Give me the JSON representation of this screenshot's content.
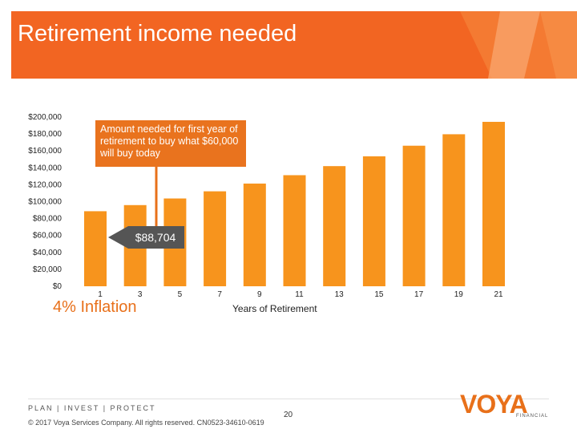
{
  "slide": {
    "title": "Retirement income needed",
    "callout": "Amount needed for first year of retirement to buy what $60,000 will buy today",
    "highlight_value": "$88,704",
    "inflation_label": "4% Inflation",
    "footer_tagline": "PLAN | INVEST | PROTECT",
    "page_number": "20",
    "copyright": "© 2017 Voya Services Company. All rights reserved. CN0523-34610-0619",
    "logo_text": "VOYA",
    "logo_subtext": "FINANCIAL",
    "colors": {
      "banner": "#f26522",
      "bar": "#f7941d",
      "accent": "#e8701a"
    }
  },
  "chart_data": {
    "type": "bar",
    "title": "",
    "xlabel": "Years of Retirement",
    "ylabel": "",
    "ylim": [
      0,
      200000
    ],
    "y_ticks": [
      "$0",
      "$20,000",
      "$40,000",
      "$60,000",
      "$80,000",
      "$100,000",
      "$120,000",
      "$140,000",
      "$160,000",
      "$180,000",
      "$200,000"
    ],
    "categories": [
      "1",
      "3",
      "5",
      "7",
      "9",
      "11",
      "13",
      "15",
      "17",
      "19",
      "21"
    ],
    "values": [
      88704,
      95942,
      103771,
      112239,
      121397,
      131303,
      142017,
      153605,
      166139,
      179696,
      194359
    ]
  }
}
